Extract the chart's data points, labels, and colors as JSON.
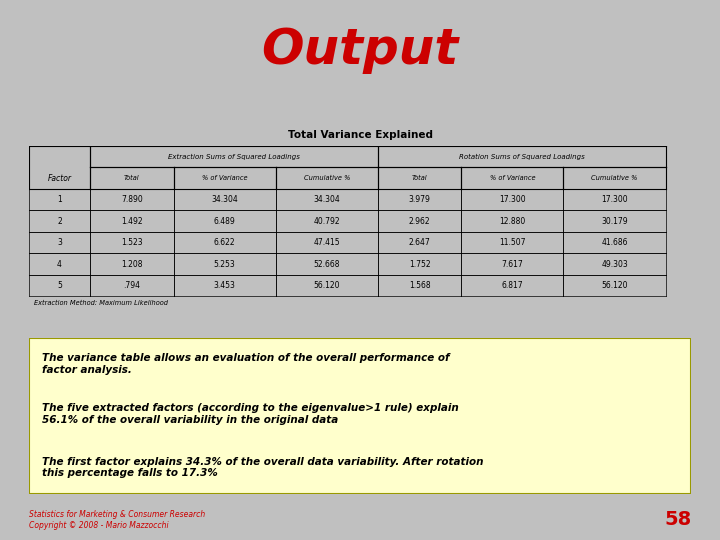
{
  "title": "Output",
  "title_color": "#cc0000",
  "title_fontsize": 36,
  "title_fontstyle": "italic",
  "bg_color": "#c0c0c0",
  "slide_bg": "#ffffff",
  "table_title": "Total Variance Explained",
  "table_data": [
    [
      "1",
      "7.890",
      "34.304",
      "34.304",
      "3.979",
      "17.300",
      "17.300"
    ],
    [
      "2",
      "1.492",
      "6.489",
      "40.792",
      "2.962",
      "12.880",
      "30.179"
    ],
    [
      "3",
      "1.523",
      "6.622",
      "47.415",
      "2.647",
      "11.507",
      "41.686"
    ],
    [
      "4",
      "1.208",
      "5.253",
      "52.668",
      "1.752",
      "7.617",
      "49.303"
    ],
    [
      "5",
      ".794",
      "3.453",
      "56.120",
      "1.568",
      "6.817",
      "56.120"
    ]
  ],
  "table_footnote": "Extraction Method: Maximum Likelihood",
  "box_bg": "#ffffcc",
  "box_border": "#999900",
  "box_text_lines": [
    "The variance table allows an evaluation of the overall performance of\nfactor analysis.",
    "The five extracted factors (according to the eigenvalue>1 rule) explain\n56.1% of the overall variability in the original data",
    "The first factor explains 34.3% of the overall data variability. After rotation\nthis percentage falls to 17.3%"
  ],
  "box_text_color": "#000000",
  "footer_text": "Statistics for Marketing & Consumer Research\nCopyright © 2008 - Mario Mazzocchi",
  "footer_color": "#cc0000",
  "page_num": "58",
  "page_num_color": "#cc0000"
}
